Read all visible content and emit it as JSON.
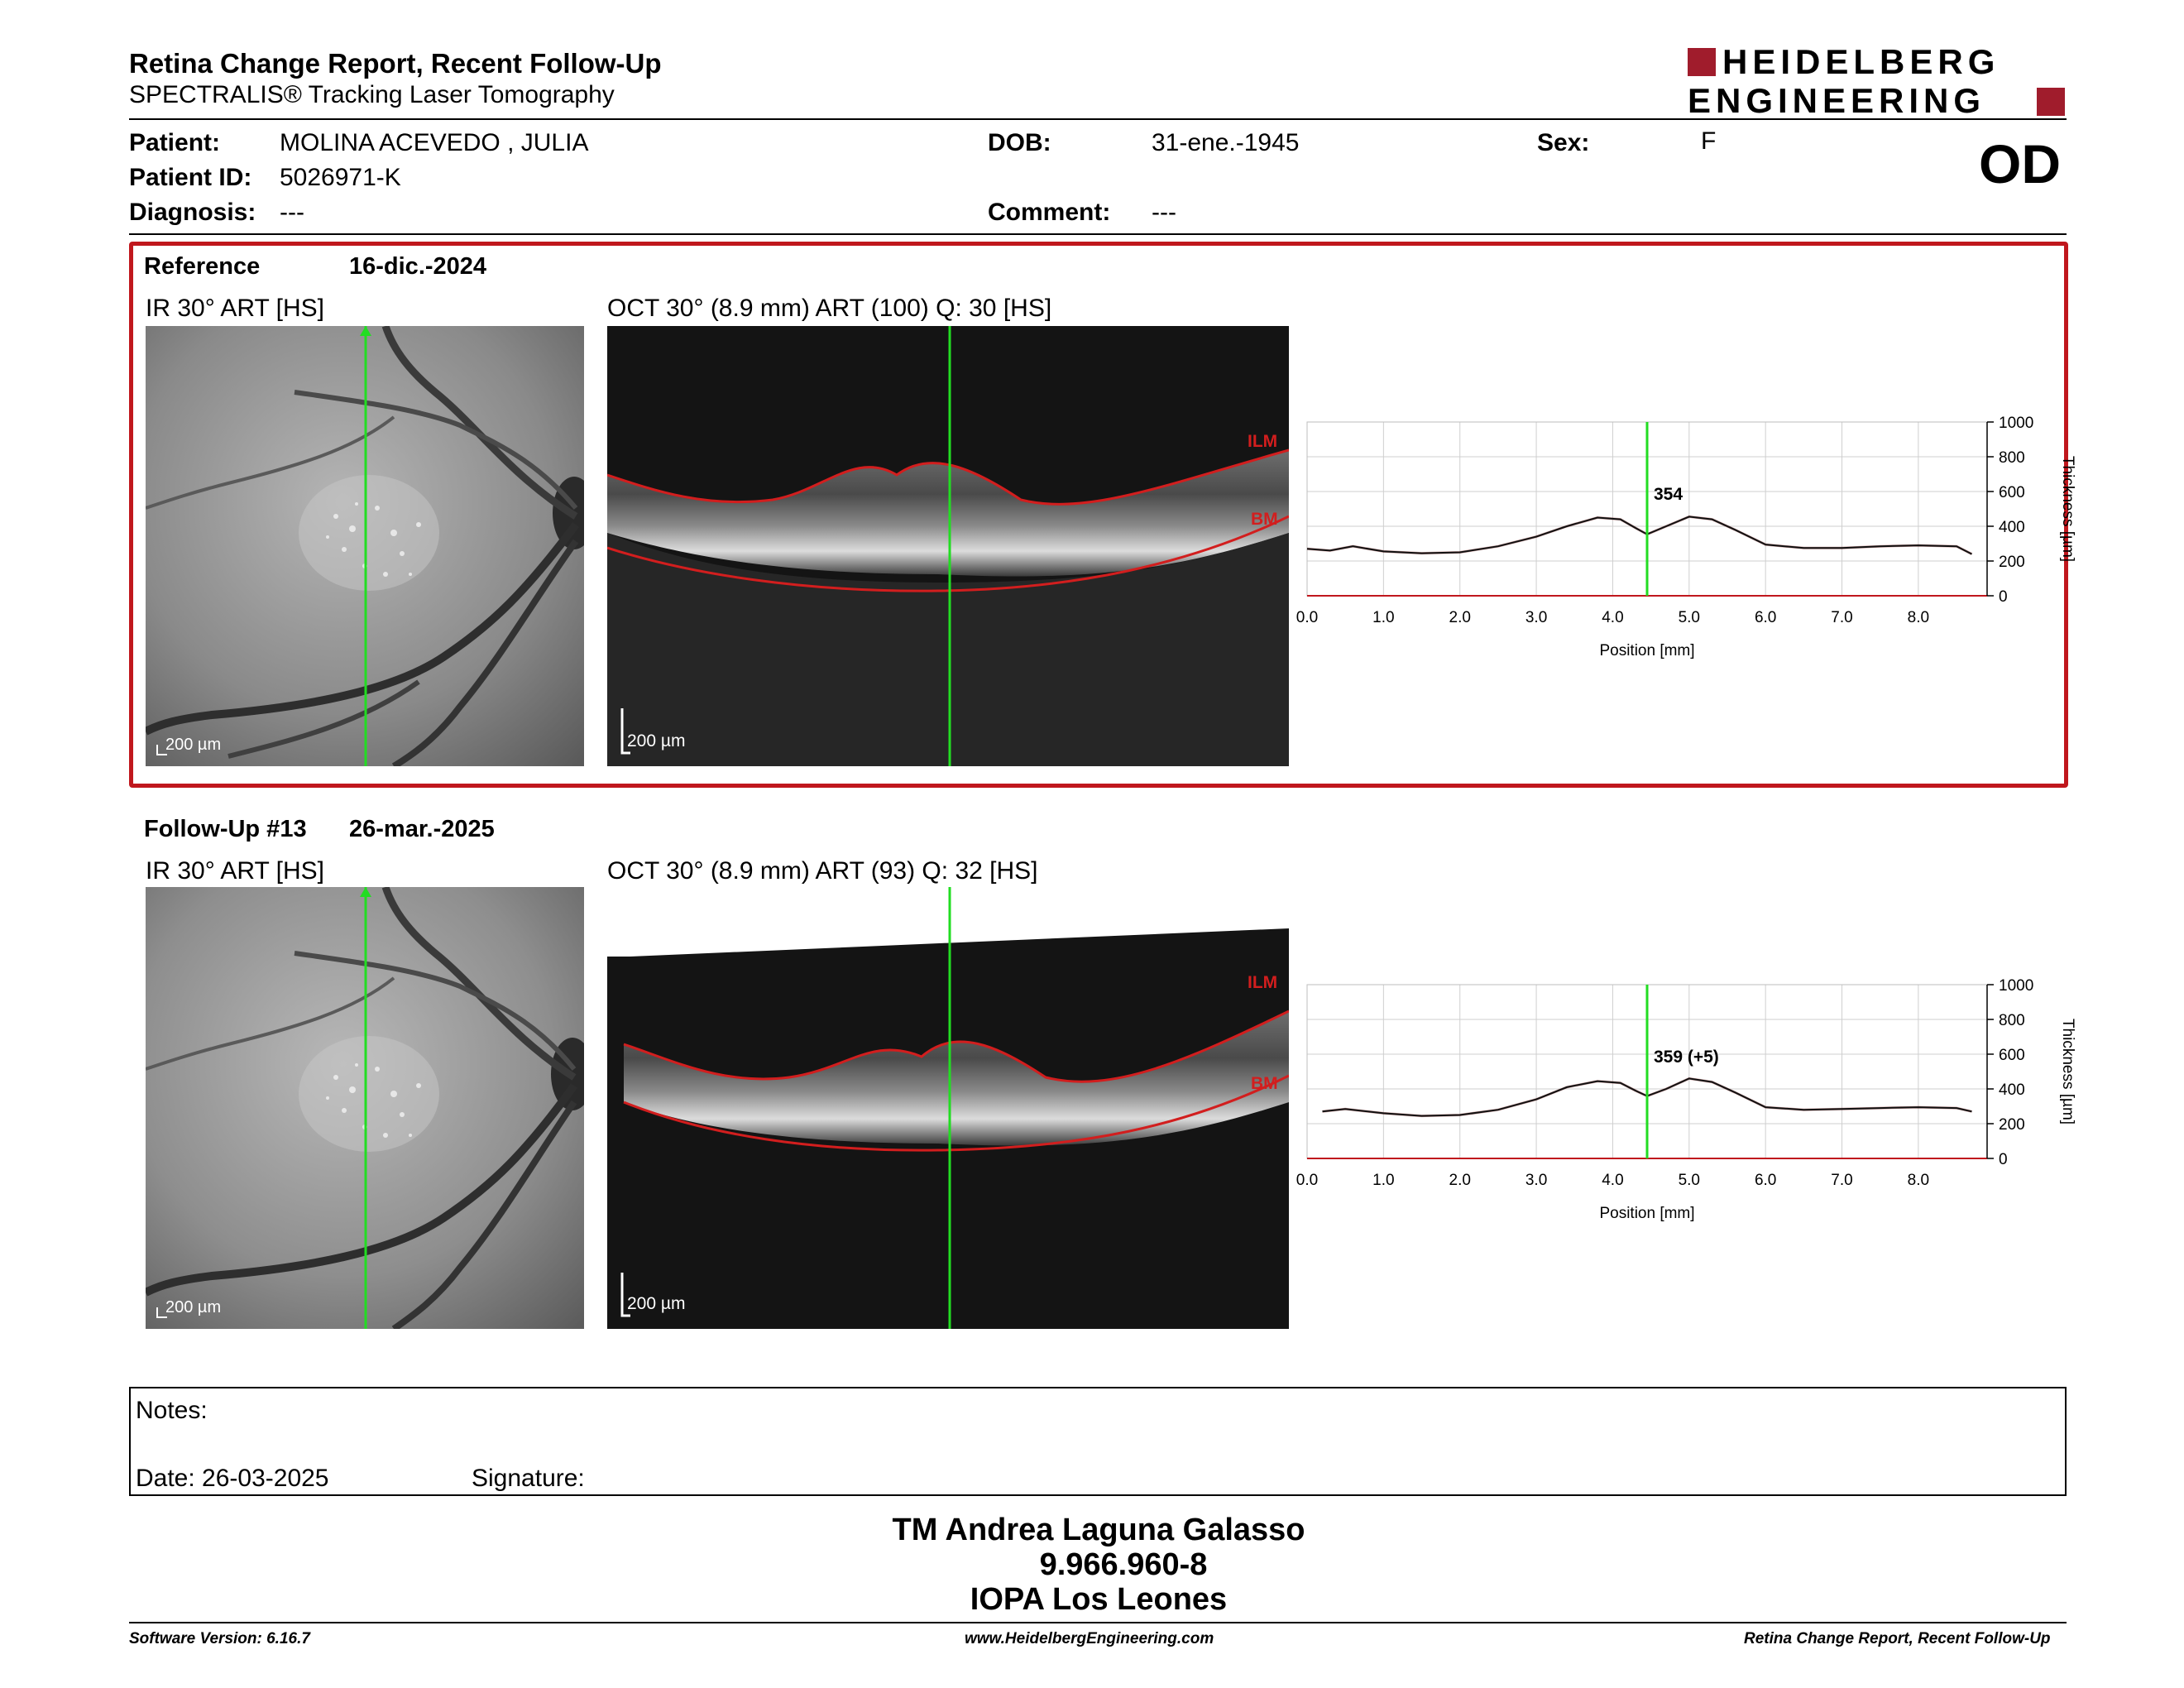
{
  "header": {
    "title": "Retina Change Report, Recent Follow-Up",
    "subtitle": "SPECTRALIS® Tracking Laser Tomography",
    "logo_line1": "HEIDELBERG",
    "logo_line2": "ENGINEERING"
  },
  "patient": {
    "patient_label": "Patient:",
    "patient_value": "MOLINA ACEVEDO , JULIA",
    "id_label": "Patient ID:",
    "id_value": "5026971-K",
    "diagnosis_label": "Diagnosis:",
    "diagnosis_value": "---",
    "dob_label": "DOB:",
    "dob_value": "31-ene.-1945",
    "comment_label": "Comment:",
    "comment_value": "---",
    "sex_label": "Sex:",
    "sex_value": "F",
    "eye": "OD"
  },
  "reference": {
    "label": "Reference",
    "date": "16-dic.-2024",
    "ir_label": "IR 30° ART [HS]",
    "oct_label": "OCT 30° (8.9 mm) ART (100) Q: 30 [HS]",
    "scale_ir": "200 µm",
    "scale_oct": "200 µm",
    "ilm": "ILM",
    "bm": "BM",
    "marker_value": "354"
  },
  "followup": {
    "label": "Follow-Up #13",
    "date": "26-mar.-2025",
    "ir_label": "IR 30° ART [HS]",
    "oct_label": "OCT 30° (8.9 mm) ART (93) Q: 32 [HS]",
    "scale_ir": "200 µm",
    "scale_oct": "200 µm",
    "ilm": "ILM",
    "bm": "BM",
    "marker_value": "359 (+5)"
  },
  "chart_data": [
    {
      "type": "line",
      "xlabel": "Position [mm]",
      "ylabel": "Thickness [µm]",
      "xlim": [
        0.0,
        8.9
      ],
      "ylim": [
        0,
        1000
      ],
      "xticks": [
        "0.0",
        "1.0",
        "2.0",
        "3.0",
        "4.0",
        "5.0",
        "6.0",
        "7.0",
        "8.0"
      ],
      "yticks": [
        "0",
        "200",
        "400",
        "600",
        "800",
        "1000"
      ],
      "grid": true,
      "marker_x": 4.45,
      "marker_label": "354",
      "series": [
        {
          "x": [
            0.0,
            0.3,
            0.6,
            1.0,
            1.5,
            2.0,
            2.5,
            3.0,
            3.4,
            3.8,
            4.1,
            4.3,
            4.45,
            4.7,
            5.0,
            5.3,
            5.6,
            6.0,
            6.5,
            7.0,
            7.5,
            8.0,
            8.5,
            8.7
          ],
          "y": [
            270,
            260,
            285,
            255,
            245,
            250,
            285,
            340,
            400,
            450,
            440,
            390,
            354,
            400,
            455,
            440,
            380,
            295,
            275,
            275,
            285,
            290,
            285,
            240
          ]
        }
      ]
    },
    {
      "type": "line",
      "xlabel": "Position [mm]",
      "ylabel": "Thickness [µm]",
      "xlim": [
        0.0,
        8.9
      ],
      "ylim": [
        0,
        1000
      ],
      "xticks": [
        "0.0",
        "1.0",
        "2.0",
        "3.0",
        "4.0",
        "5.0",
        "6.0",
        "7.0",
        "8.0"
      ],
      "yticks": [
        "0",
        "200",
        "400",
        "600",
        "800",
        "1000"
      ],
      "grid": true,
      "marker_x": 4.45,
      "marker_label": "359 (+5)",
      "series": [
        {
          "x": [
            0.2,
            0.5,
            1.0,
            1.5,
            2.0,
            2.5,
            3.0,
            3.4,
            3.8,
            4.1,
            4.3,
            4.45,
            4.7,
            5.0,
            5.3,
            5.6,
            6.0,
            6.5,
            7.0,
            7.5,
            8.0,
            8.5,
            8.7
          ],
          "y": [
            270,
            285,
            260,
            245,
            250,
            280,
            340,
            410,
            445,
            435,
            390,
            359,
            400,
            460,
            440,
            380,
            295,
            280,
            285,
            290,
            295,
            290,
            270
          ]
        }
      ]
    }
  ],
  "notes": {
    "notes_label": "Notes:",
    "date_label": "Date: 26-03-2025",
    "signature_label": "Signature:"
  },
  "signature_block": {
    "name": "TM Andrea Laguna Galasso",
    "rut": "9.966.960-8",
    "org": "IOPA Los Leones"
  },
  "footer": {
    "software": "Software Version: 6.16.7",
    "website": "www.HeidelbergEngineering.com",
    "report": "Retina Change Report, Recent Follow-Up"
  }
}
